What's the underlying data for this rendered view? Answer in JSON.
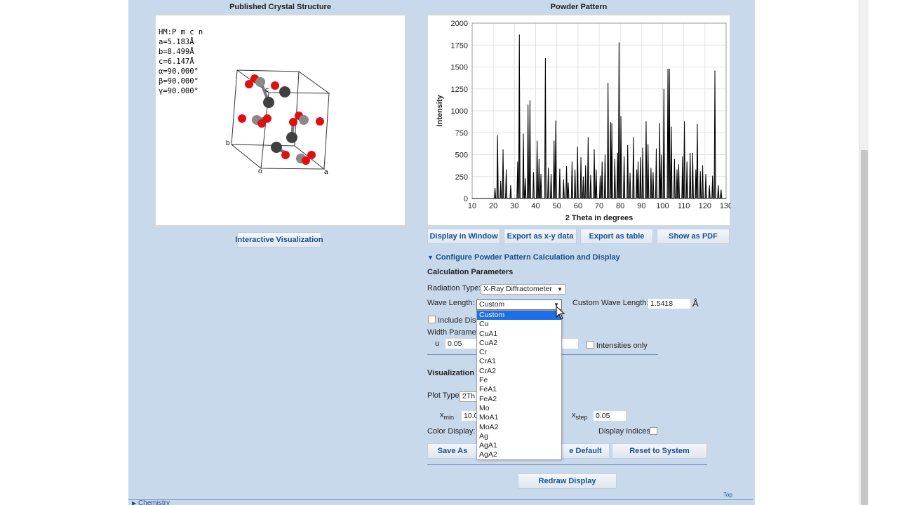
{
  "crystal": {
    "title": "Published Crystal Structure",
    "info": [
      "HM:P m c n",
      "a=5.183Å",
      "b=8.499Å",
      "c=6.147Å",
      "α=90.000°",
      "β=90.000°",
      "γ=90.000°"
    ],
    "axis_a": "a",
    "axis_b": "b",
    "axis_c": "c",
    "axis_o": "o",
    "interactive_button": "Interactive Visualization"
  },
  "powder": {
    "title": "Powder Pattern",
    "buttons": [
      "Display in Window",
      "Export as x-y data",
      "Export as table",
      "Show as PDF"
    ]
  },
  "chart_data": {
    "type": "line",
    "xlabel": "2 Theta in degrees",
    "ylabel": "Intensity",
    "xlim": [
      10,
      130
    ],
    "ylim": [
      0,
      2000
    ],
    "xticks": [
      10,
      20,
      30,
      40,
      50,
      60,
      70,
      80,
      90,
      100,
      110,
      120,
      130
    ],
    "yticks": [
      0,
      250,
      500,
      750,
      1000,
      1250,
      1500,
      1750,
      2000
    ],
    "peaks": [
      [
        20.8,
        120
      ],
      [
        22.0,
        720
      ],
      [
        23.5,
        200
      ],
      [
        24.6,
        560
      ],
      [
        26.1,
        330
      ],
      [
        28.2,
        150
      ],
      [
        31.5,
        420
      ],
      [
        32.3,
        1870
      ],
      [
        34.2,
        740
      ],
      [
        35.1,
        230
      ],
      [
        36.4,
        1070
      ],
      [
        37.3,
        1120
      ],
      [
        39.0,
        300
      ],
      [
        40.7,
        660
      ],
      [
        41.6,
        450
      ],
      [
        42.5,
        280
      ],
      [
        44.6,
        1600
      ],
      [
        46.0,
        350
      ],
      [
        47.3,
        280
      ],
      [
        48.7,
        660
      ],
      [
        49.5,
        890
      ],
      [
        51.4,
        340
      ],
      [
        53.2,
        220
      ],
      [
        54.6,
        370
      ],
      [
        55.4,
        180
      ],
      [
        57.2,
        420
      ],
      [
        58.6,
        330
      ],
      [
        59.8,
        590
      ],
      [
        61.4,
        470
      ],
      [
        62.5,
        250
      ],
      [
        63.6,
        380
      ],
      [
        64.8,
        700
      ],
      [
        66.0,
        270
      ],
      [
        67.7,
        560
      ],
      [
        68.6,
        330
      ],
      [
        70.5,
        260
      ],
      [
        71.4,
        420
      ],
      [
        72.8,
        500
      ],
      [
        74.2,
        1320
      ],
      [
        75.4,
        870
      ],
      [
        76.0,
        860
      ],
      [
        77.4,
        450
      ],
      [
        78.7,
        520
      ],
      [
        79.4,
        1780
      ],
      [
        80.3,
        940
      ],
      [
        81.8,
        480
      ],
      [
        83.5,
        610
      ],
      [
        84.6,
        290
      ],
      [
        86.2,
        700
      ],
      [
        87.8,
        330
      ],
      [
        88.4,
        420
      ],
      [
        89.5,
        470
      ],
      [
        90.6,
        580
      ],
      [
        92.2,
        880
      ],
      [
        93.1,
        620
      ],
      [
        94.5,
        350
      ],
      [
        95.5,
        300
      ],
      [
        97.0,
        570
      ],
      [
        98.6,
        860
      ],
      [
        99.4,
        500
      ],
      [
        100.6,
        1250
      ],
      [
        102.5,
        1480
      ],
      [
        103.2,
        1480
      ],
      [
        104.1,
        820
      ],
      [
        105.6,
        450
      ],
      [
        106.8,
        330
      ],
      [
        107.6,
        390
      ],
      [
        109.4,
        480
      ],
      [
        110.3,
        880
      ],
      [
        111.5,
        420
      ],
      [
        113.0,
        520
      ],
      [
        114.2,
        520
      ],
      [
        115.7,
        330
      ],
      [
        116.4,
        850
      ],
      [
        117.8,
        310
      ],
      [
        118.9,
        380
      ],
      [
        120.4,
        280
      ],
      [
        122.1,
        150
      ],
      [
        123.6,
        260
      ],
      [
        124.7,
        1460
      ],
      [
        126.3,
        150
      ],
      [
        127.6,
        100
      ]
    ]
  },
  "config": {
    "header": "Configure Powder Pattern Calculation and Display",
    "calc_params": "Calculation Parameters",
    "radiation_label": "Radiation Type:",
    "radiation_value": "X-Ray Diffractometer",
    "wave_label": "Wave Length:",
    "wave_value": "Custom",
    "custom_wave_label": "Custom Wave Length:",
    "custom_wave_value": "1.5418",
    "angstrom": "Å",
    "include_disp": "Include Disp",
    "width_params": "Width Paramete",
    "u_label": "u",
    "u_value": "0.05",
    "intensities_only": "Intensities only",
    "visualization": "Visualization F",
    "plot_type_label": "Plot Type:",
    "plot_type_value": "2Th",
    "xmin_label_main": "x",
    "xmin_label_sub": "min",
    "xmin_value": "10.0",
    "xstep_label_main": "x",
    "xstep_label_sub": "step",
    "xstep_value": "0.05",
    "color_display": "Color Display:",
    "display_indices": "Display Indices:",
    "save_as": "Save As",
    "set_default": "e Default",
    "reset_system": "Reset to System",
    "redraw": "Redraw Display",
    "top_link": "Top",
    "chemistry": "Chemistry"
  },
  "wave_options": [
    "Custom",
    "Cu",
    "CuA1",
    "CuA2",
    "Cr",
    "CrA1",
    "CrA2",
    "Fe",
    "FeA1",
    "FeA2",
    "Mo",
    "MoA1",
    "MoA2",
    "Ag",
    "AgA1",
    "AgA2"
  ],
  "colors": {
    "accent": "#1a4f8c",
    "panel_bg": "#c9d9ec",
    "selected": "#1e6ee6",
    "atom_red": "#e01010",
    "atom_dark": "#404040",
    "atom_gray": "#8a8a8a"
  }
}
